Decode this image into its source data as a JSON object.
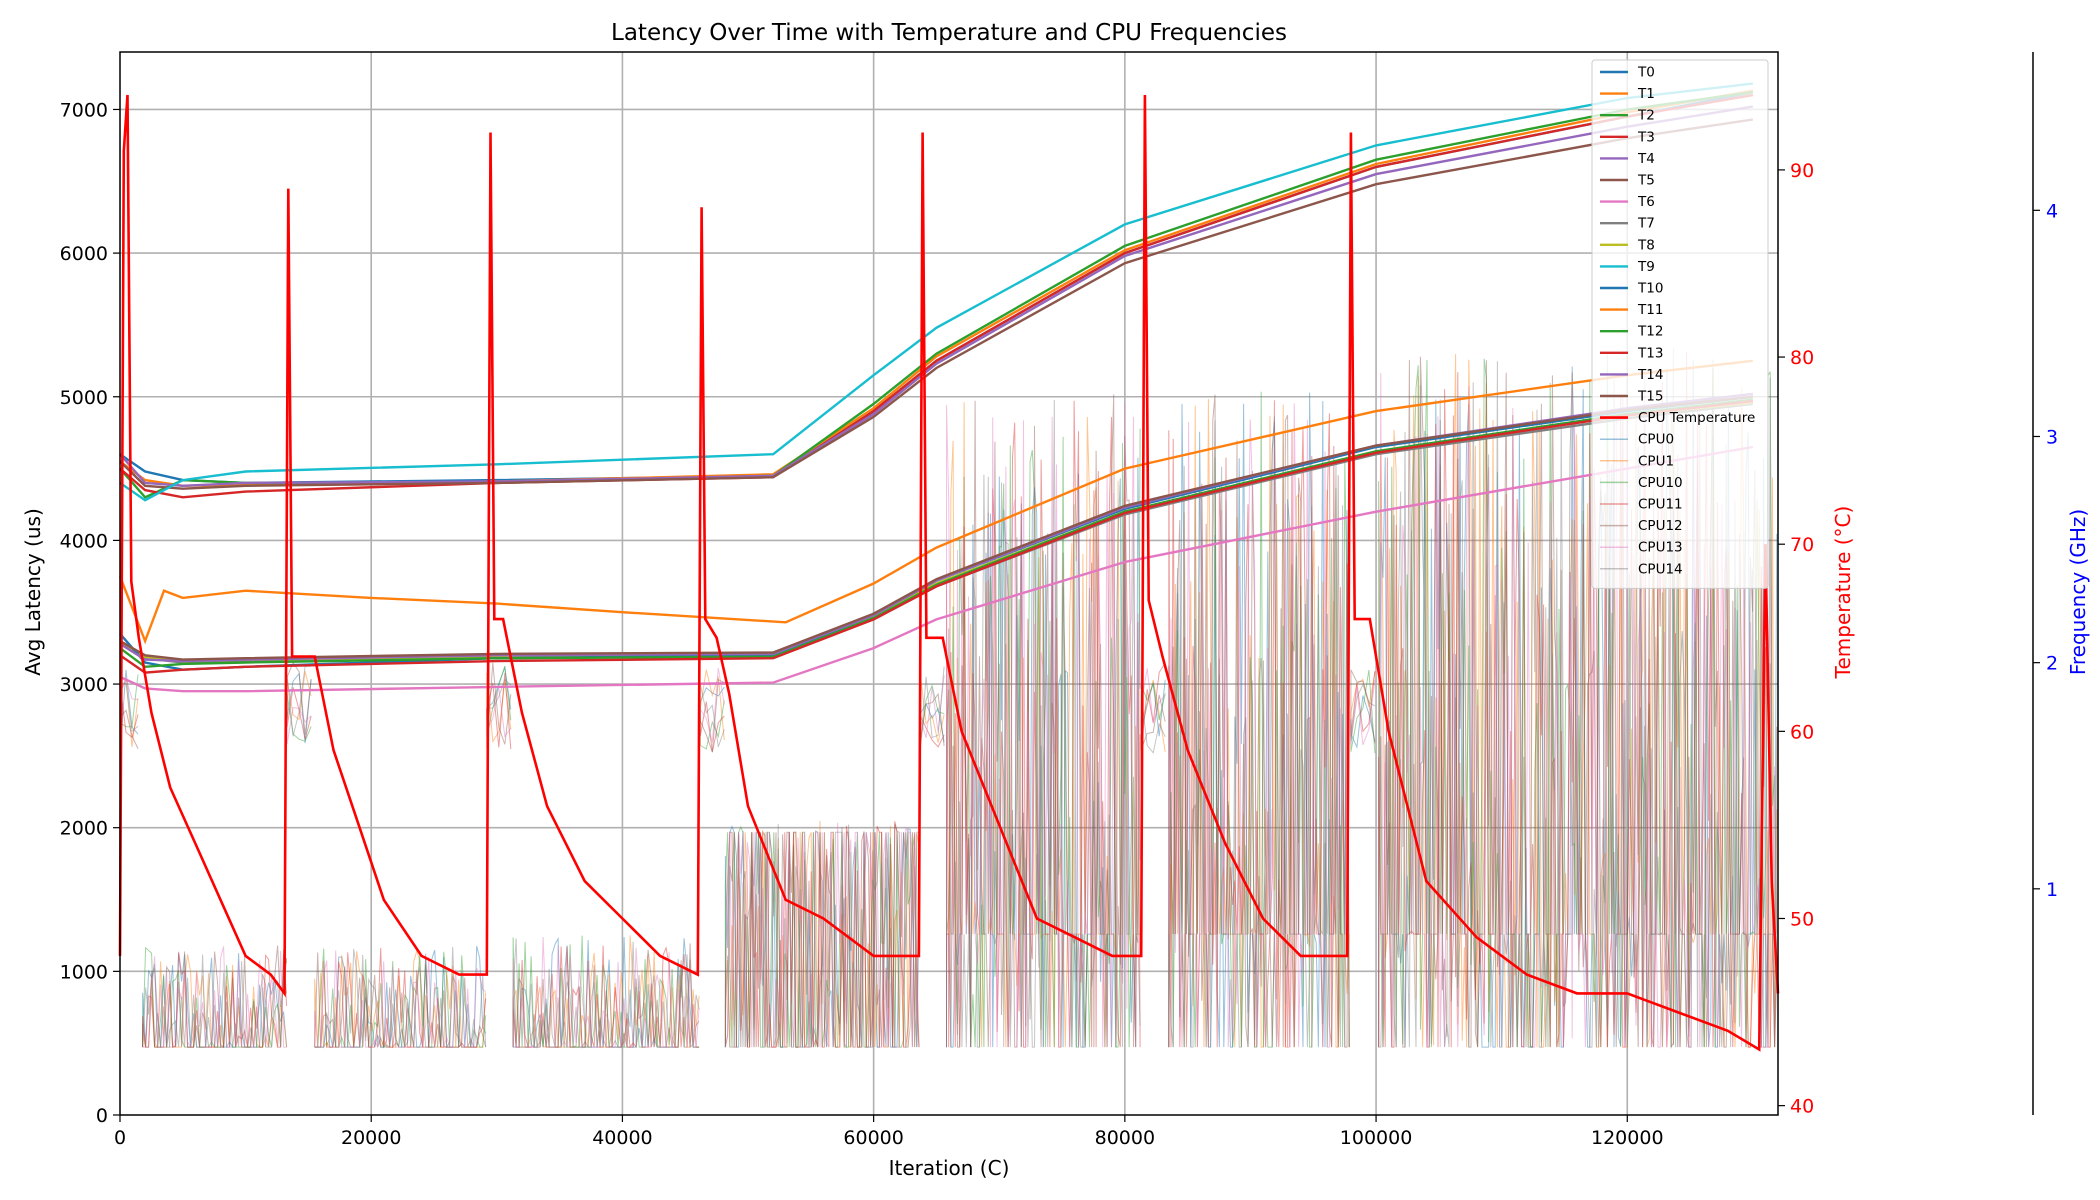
{
  "chart_data": {
    "type": "line",
    "title": "Latency Over Time with Temperature and CPU Frequencies",
    "xlabel": "Iteration (C)",
    "ylabel": "Avg Latency (us)",
    "y2label": "Temperature (°C)",
    "y3label": "Frequency (GHz)",
    "xlim": [
      0,
      132000
    ],
    "ylim": [
      0,
      7400
    ],
    "y2lim": [
      39.5,
      96.3
    ],
    "y3lim": [
      0,
      4.7
    ],
    "xticks": [
      "0",
      "20000",
      "40000",
      "60000",
      "80000",
      "100000",
      "120000"
    ],
    "yticks": [
      "0",
      "1000",
      "2000",
      "3000",
      "4000",
      "5000",
      "6000",
      "7000"
    ],
    "y2ticks": [
      "40",
      "50",
      "60",
      "70",
      "80",
      "90"
    ],
    "y3ticks": [
      "1",
      "2",
      "3",
      "4"
    ],
    "grid": true,
    "legend_position": "top-right",
    "latency_series": [
      {
        "name": "T0",
        "color": "#1f77b4",
        "x": [
          0,
          2000,
          5000,
          10000,
          30000,
          52000,
          60000,
          65000,
          80000,
          100000,
          120000,
          130000
        ],
        "y": [
          4600,
          4480,
          4420,
          4400,
          4420,
          4450,
          4900,
          5250,
          6000,
          6600,
          6950,
          7120
        ]
      },
      {
        "name": "T1",
        "color": "#ff7f0e",
        "x": [
          0,
          2000,
          5000,
          10000,
          30000,
          52000,
          60000,
          65000,
          80000,
          100000,
          120000,
          130000
        ],
        "y": [
          4550,
          4420,
          4380,
          4390,
          4410,
          4460,
          4920,
          5280,
          6020,
          6620,
          6980,
          7130
        ]
      },
      {
        "name": "T2",
        "color": "#2ca02c",
        "x": [
          0,
          2000,
          5000,
          10000,
          30000,
          52000,
          60000,
          65000,
          80000,
          100000,
          120000,
          130000
        ],
        "y": [
          4500,
          4300,
          4420,
          4400,
          4400,
          4450,
          4950,
          5300,
          6050,
          6650,
          7000,
          7120
        ]
      },
      {
        "name": "T3",
        "color": "#d62728",
        "x": [
          0,
          2000,
          5000,
          10000,
          30000,
          52000,
          60000,
          65000,
          80000,
          100000,
          120000,
          130000
        ],
        "y": [
          4500,
          4350,
          4300,
          4340,
          4400,
          4440,
          4900,
          5250,
          6000,
          6600,
          6950,
          7100
        ]
      },
      {
        "name": "T4",
        "color": "#9467bd",
        "x": [
          0,
          2000,
          5000,
          10000,
          30000,
          52000,
          60000,
          65000,
          80000,
          100000,
          120000,
          130000
        ],
        "y": [
          4600,
          4400,
          4380,
          4400,
          4410,
          4450,
          4880,
          5230,
          5980,
          6550,
          6880,
          7020
        ]
      },
      {
        "name": "T5",
        "color": "#8c564b",
        "x": [
          0,
          2000,
          5000,
          10000,
          30000,
          52000,
          60000,
          65000,
          80000,
          100000,
          120000,
          130000
        ],
        "y": [
          4550,
          4380,
          4360,
          4380,
          4400,
          4440,
          4860,
          5200,
          5930,
          6480,
          6800,
          6930
        ]
      },
      {
        "name": "T6",
        "color": "#e377c2",
        "x": [
          0,
          2000,
          5000,
          10000,
          30000,
          52000,
          60000,
          65000,
          80000,
          100000,
          120000,
          130000
        ],
        "y": [
          3050,
          2970,
          2950,
          2950,
          2980,
          3010,
          3250,
          3450,
          3850,
          4200,
          4500,
          4650
        ]
      },
      {
        "name": "T7",
        "color": "#7f7f7f",
        "x": [
          0,
          2000,
          5000,
          10000,
          30000,
          52000,
          60000,
          65000,
          80000,
          100000,
          120000,
          130000
        ],
        "y": [
          3300,
          3180,
          3150,
          3160,
          3180,
          3200,
          3450,
          3680,
          4180,
          4600,
          4850,
          4950
        ]
      },
      {
        "name": "T8",
        "color": "#bcbd22",
        "x": [
          0,
          2000,
          5000,
          10000,
          30000,
          52000,
          60000,
          65000,
          80000,
          100000,
          120000,
          130000
        ],
        "y": [
          3300,
          3190,
          3160,
          3170,
          3190,
          3210,
          3470,
          3700,
          4200,
          4620,
          4870,
          4960
        ]
      },
      {
        "name": "T9",
        "color": "#17becf",
        "x": [
          0,
          2000,
          5000,
          10000,
          30000,
          52000,
          60000,
          65000,
          80000,
          100000,
          120000,
          130000
        ],
        "y": [
          4400,
          4280,
          4420,
          4480,
          4530,
          4600,
          5150,
          5480,
          6200,
          6750,
          7080,
          7180
        ]
      },
      {
        "name": "T10",
        "color": "#1f77b4",
        "x": [
          0,
          2000,
          5000,
          10000,
          30000,
          52000,
          60000,
          65000,
          80000,
          100000,
          120000,
          130000
        ],
        "y": [
          3350,
          3150,
          3100,
          3120,
          3180,
          3200,
          3480,
          3720,
          4220,
          4650,
          4900,
          5000
        ]
      },
      {
        "name": "T11",
        "color": "#ff7f0e",
        "x": [
          0,
          2000,
          3500,
          5000,
          10000,
          20000,
          30000,
          40000,
          53000,
          60000,
          65000,
          80000,
          100000,
          120000,
          130000
        ],
        "y": [
          3750,
          3300,
          3650,
          3600,
          3650,
          3600,
          3560,
          3500,
          3430,
          3700,
          3950,
          4500,
          4900,
          5150,
          5250
        ]
      },
      {
        "name": "T12",
        "color": "#2ca02c",
        "x": [
          0,
          2000,
          5000,
          10000,
          30000,
          52000,
          60000,
          65000,
          80000,
          100000,
          120000,
          130000
        ],
        "y": [
          3250,
          3120,
          3140,
          3150,
          3180,
          3190,
          3460,
          3690,
          4200,
          4620,
          4880,
          4980
        ]
      },
      {
        "name": "T13",
        "color": "#d62728",
        "x": [
          0,
          2000,
          5000,
          10000,
          30000,
          52000,
          60000,
          65000,
          80000,
          100000,
          120000,
          130000
        ],
        "y": [
          3200,
          3080,
          3100,
          3120,
          3160,
          3180,
          3450,
          3680,
          4190,
          4610,
          4870,
          4970
        ]
      },
      {
        "name": "T14",
        "color": "#9467bd",
        "x": [
          0,
          2000,
          5000,
          10000,
          30000,
          52000,
          60000,
          65000,
          80000,
          100000,
          120000,
          130000
        ],
        "y": [
          3280,
          3170,
          3160,
          3170,
          3200,
          3210,
          3480,
          3720,
          4230,
          4660,
          4920,
          5020
        ]
      },
      {
        "name": "T15",
        "color": "#8c564b",
        "x": [
          0,
          2000,
          5000,
          10000,
          30000,
          52000,
          60000,
          65000,
          80000,
          100000,
          120000,
          130000
        ],
        "y": [
          3300,
          3200,
          3170,
          3180,
          3210,
          3220,
          3490,
          3730,
          4240,
          4660,
          4910,
          5000
        ]
      }
    ],
    "temperature": {
      "name": "CPU Temperature",
      "color": "#ff0000",
      "x": [
        0,
        300,
        600,
        900,
        1500,
        2500,
        4000,
        6000,
        8000,
        10000,
        12000,
        13100,
        13400,
        13700,
        14500,
        15500,
        17000,
        19000,
        21000,
        24000,
        27000,
        29200,
        29500,
        29800,
        30500,
        32000,
        34000,
        37000,
        40000,
        43000,
        46000,
        46300,
        46600,
        47500,
        48500,
        50000,
        53000,
        56000,
        60000,
        63600,
        63900,
        64200,
        65500,
        67000,
        70000,
        73000,
        76000,
        79000,
        81300,
        81600,
        81900,
        83000,
        85000,
        88000,
        91000,
        94000,
        97700,
        98000,
        98300,
        99500,
        101000,
        104000,
        108000,
        112000,
        116000,
        120000,
        124000,
        128000,
        130500,
        131000,
        131500,
        132000
      ],
      "y": [
        48,
        91,
        94,
        68,
        65,
        61,
        57,
        54,
        51,
        48,
        47,
        46,
        89,
        64,
        64,
        64,
        59,
        55,
        51,
        48,
        47,
        47,
        92,
        66,
        66,
        61,
        56,
        52,
        50,
        48,
        47,
        88,
        66,
        65,
        62,
        56,
        51,
        50,
        48,
        48,
        92,
        65,
        65,
        60,
        55,
        50,
        49,
        48,
        48,
        94,
        67,
        64,
        59,
        54,
        50,
        48,
        48,
        92,
        66,
        66,
        60,
        52,
        49,
        47,
        46,
        46,
        45,
        44,
        43,
        70,
        52,
        46
      ]
    },
    "cpu_frequency_series": [
      {
        "name": "CPU0",
        "color": "#1f77b4"
      },
      {
        "name": "CPU1",
        "color": "#ff7f0e"
      },
      {
        "name": "CPU10",
        "color": "#2ca02c"
      },
      {
        "name": "CPU11",
        "color": "#d62728"
      },
      {
        "name": "CPU12",
        "color": "#8c564b"
      },
      {
        "name": "CPU13",
        "color": "#e377c2"
      },
      {
        "name": "CPU14",
        "color": "#7f7f7f"
      }
    ],
    "cpu_frequency_blocks": [
      {
        "x": [
          0,
          1800
        ],
        "low": 1.6,
        "high": 2.0,
        "level": "mid"
      },
      {
        "x": [
          1800,
          13300
        ],
        "low": 0.3,
        "high": 0.75,
        "level": "low"
      },
      {
        "x": [
          13300,
          15500
        ],
        "low": 1.6,
        "high": 2.0,
        "level": "mid"
      },
      {
        "x": [
          15500,
          29200
        ],
        "low": 0.3,
        "high": 0.75,
        "level": "low"
      },
      {
        "x": [
          29200,
          31300
        ],
        "low": 1.6,
        "high": 2.0,
        "level": "mid"
      },
      {
        "x": [
          31300,
          46200
        ],
        "low": 0.3,
        "high": 0.8,
        "level": "low"
      },
      {
        "x": [
          46200,
          48200
        ],
        "low": 1.6,
        "high": 2.0,
        "level": "mid"
      },
      {
        "x": [
          48200,
          63700
        ],
        "low": 0.3,
        "high": 1.3,
        "level": "mixed"
      },
      {
        "x": [
          63700,
          65800
        ],
        "low": 1.6,
        "high": 2.0,
        "level": "mid"
      },
      {
        "x": [
          65800,
          81300
        ],
        "low": 0.3,
        "high": 3.2,
        "level": "high"
      },
      {
        "x": [
          81300,
          83500
        ],
        "low": 1.6,
        "high": 2.0,
        "level": "mid"
      },
      {
        "x": [
          83500,
          98000
        ],
        "low": 0.3,
        "high": 3.2,
        "level": "high"
      },
      {
        "x": [
          98000,
          100200
        ],
        "low": 1.6,
        "high": 2.0,
        "level": "mid"
      },
      {
        "x": [
          100200,
          132000
        ],
        "low": 0.3,
        "high": 3.4,
        "level": "high"
      }
    ]
  }
}
